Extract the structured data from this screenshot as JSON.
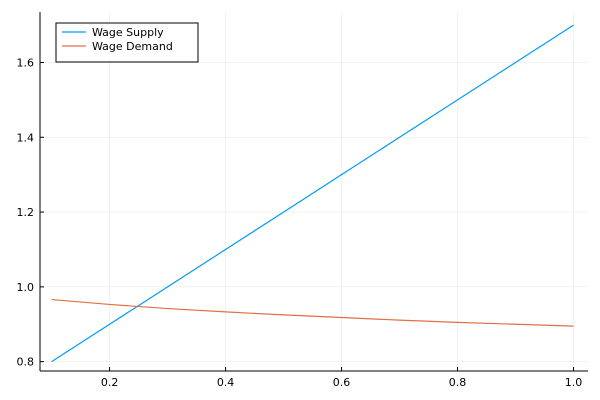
{
  "chart_data": {
    "type": "line",
    "xlim": [
      0.08,
      1.025
    ],
    "ylim": [
      0.775,
      1.735
    ],
    "x_ticks": [
      0.2,
      0.4,
      0.6,
      0.8,
      1.0
    ],
    "x_tick_labels": [
      "0.2",
      "0.4",
      "0.6",
      "0.8",
      "1.0"
    ],
    "y_ticks": [
      0.8,
      1.0,
      1.2,
      1.4,
      1.6
    ],
    "y_tick_labels": [
      "0.8",
      "1.0",
      "1.2",
      "1.4",
      "1.6"
    ],
    "grid": true,
    "legend_position": "top-left",
    "series": [
      {
        "name": "Wage Supply",
        "color": "#009af9",
        "x": [
          0.1,
          0.2,
          0.3,
          0.4,
          0.5,
          0.6,
          0.7,
          0.8,
          0.9,
          1.0
        ],
        "y": [
          0.8,
          0.9,
          1.0,
          1.1,
          1.2,
          1.3,
          1.4,
          1.5,
          1.6,
          1.7
        ]
      },
      {
        "name": "Wage Demand",
        "color": "#e26f46",
        "x": [
          0.1,
          0.2,
          0.3,
          0.4,
          0.5,
          0.6,
          0.7,
          0.8,
          0.9,
          1.0
        ],
        "y": [
          0.966,
          0.953,
          0.942,
          0.933,
          0.925,
          0.918,
          0.911,
          0.905,
          0.9,
          0.895
        ]
      }
    ]
  }
}
